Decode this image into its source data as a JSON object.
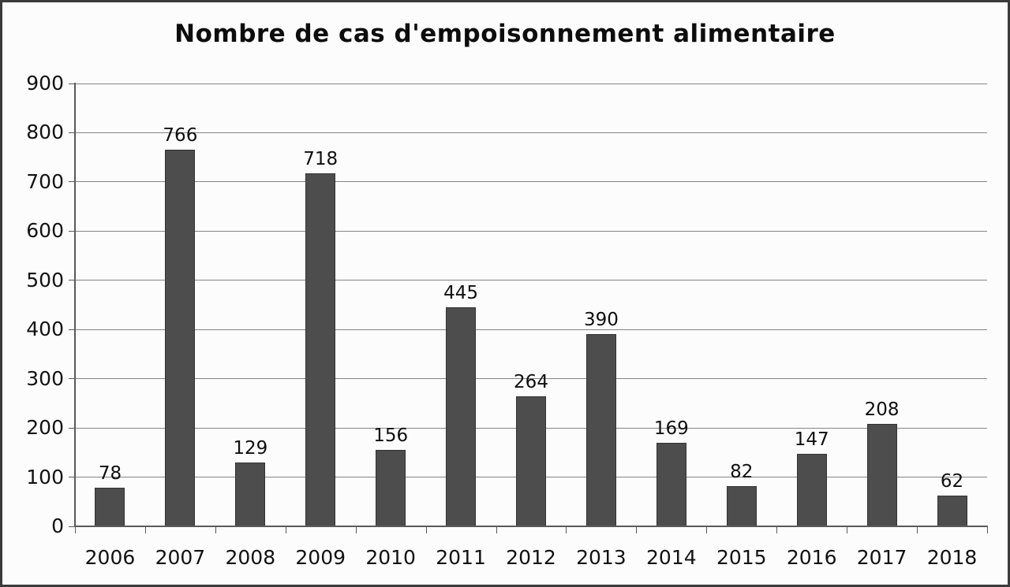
{
  "chart_data": {
    "type": "bar",
    "title": "Nombre de cas d'empoisonnement alimentaire",
    "categories": [
      "2006",
      "2007",
      "2008",
      "2009",
      "2010",
      "2011",
      "2012",
      "2013",
      "2014",
      "2015",
      "2016",
      "2017",
      "2018"
    ],
    "values": [
      78,
      766,
      129,
      718,
      156,
      445,
      264,
      390,
      169,
      82,
      147,
      208,
      62
    ],
    "xlabel": "",
    "ylabel": "",
    "ylim": [
      0,
      900
    ],
    "yticks": [
      0,
      100,
      200,
      300,
      400,
      500,
      600,
      700,
      800,
      900
    ],
    "grid": true,
    "legend": false,
    "bar_color": "#4d4d4d",
    "bar_border_color": "#333333",
    "gridline_color": "#858585",
    "axis_color": "#5a5a5a",
    "text_color": "#121212"
  }
}
